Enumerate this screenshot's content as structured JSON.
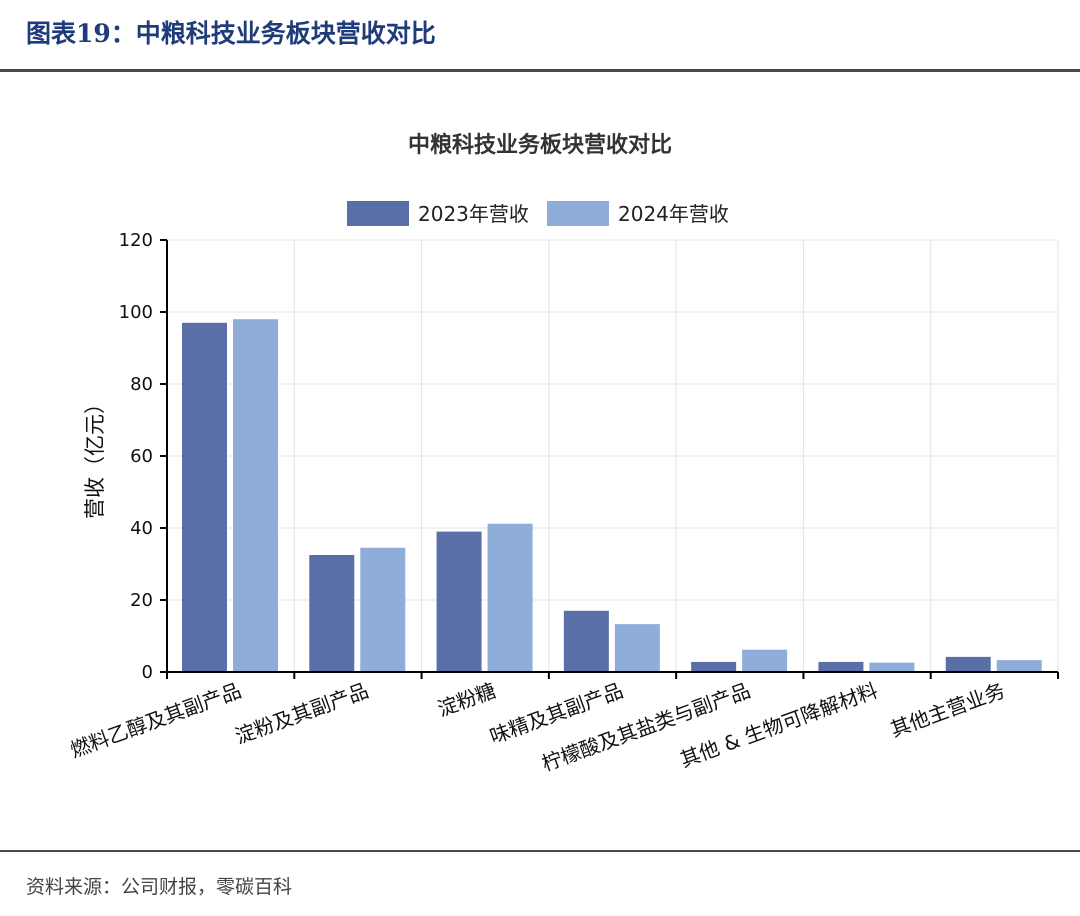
{
  "header": {
    "figure_title": "图表19：中粮科技业务板块营收对比"
  },
  "footer": {
    "source": "资料来源：公司财报，零碳百科"
  },
  "colors": {
    "series_2023": "#5a6ea8",
    "series_2024": "#8fadd9",
    "header_text": "#1f3b7a"
  },
  "chart_data": {
    "type": "bar",
    "title": "中粮科技业务板块营收对比",
    "xlabel": "",
    "ylabel": "营收（亿元）",
    "ylim": [
      0,
      120
    ],
    "yticks": [
      0,
      20,
      40,
      60,
      80,
      100,
      120
    ],
    "grid": true,
    "legend_position": "top",
    "categories": [
      "燃料乙醇及其副产品",
      "淀粉及其副产品",
      "淀粉糖",
      "味精及其副产品",
      "柠檬酸及其盐类与副产品",
      "其他 & 生物可降解材料",
      "其他主营业务"
    ],
    "series": [
      {
        "name": "2023年营收",
        "values": [
          97,
          32.5,
          39,
          17,
          2.8,
          2.8,
          4.2
        ]
      },
      {
        "name": "2024年营收",
        "values": [
          98,
          34.5,
          41.2,
          13.3,
          6.2,
          2.6,
          3.3
        ]
      }
    ]
  }
}
